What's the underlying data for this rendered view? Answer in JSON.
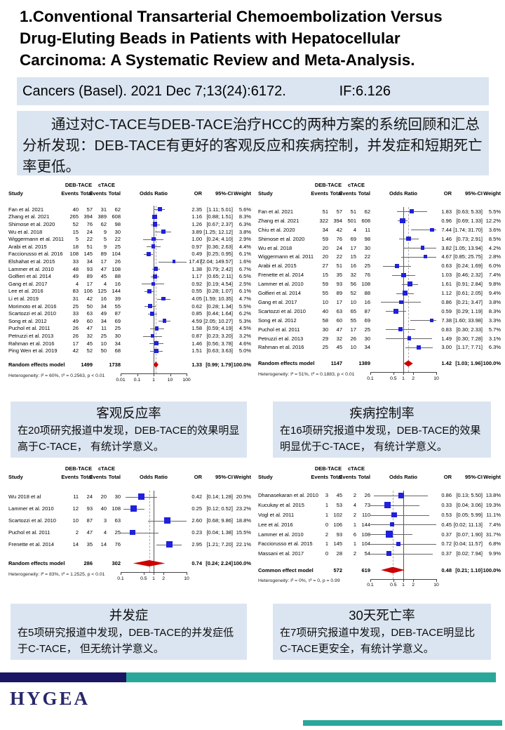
{
  "title": "1.Conventional Transarterial Chemoembolization Versus Drug-Eluting Beads in Patients with Hepatocellular Carcinoma: A Systematic Review and Meta-Analysis.",
  "citation": {
    "text": "Cancers (Basel). 2021 Dec 7;13(24):6172.",
    "impact_factor": "IF:6.126"
  },
  "summary": "通过对C-TACE与DEB-TACE治疗HCC的两种方案的系统回顾和汇总分析发现：DEB-TACE有更好的客观反应和疾病控制，并发症和短期死亡率更低。",
  "colors": {
    "panel_blue": "#dbe5f1",
    "square_blue": "#2020dd",
    "diamond_red": "#cc0000",
    "footer_navy": "#1b1663",
    "footer_teal": "#2aa79b",
    "logo_navy": "#29276b"
  },
  "captions": [
    {
      "title": "客观反应率",
      "body": "在20项研究报道中发现，DEB-TACE的效果明显高于C-TACE， 有统计学意义。"
    },
    {
      "title": "疾病控制率",
      "body": "在16项研究报道中发现，DEB-TACE的效果明显优于C-TACE， 有统计学意义。"
    },
    {
      "title": "并发症",
      "body": "在5项研究报道中发现，DEB-TACE的并发症低于C-TACE， 但无统计学意义。"
    },
    {
      "title": "30天死亡率",
      "body": "在7项研究报道中发现，DEB-TACE明显比C-TACE更安全，有统计学意义。"
    }
  ],
  "footer": {
    "logo": "HYGEA"
  },
  "chart_data": [
    {
      "type": "forest",
      "outcome": "objective-response-rate",
      "group1": "DEB-TACE",
      "group2": "cTACE",
      "headers": {
        "study": "Study",
        "events": "Events",
        "total": "Total",
        "odds_ratio": "Odds Ratio",
        "or": "OR",
        "ci": "95%-CI",
        "weight": "Weight"
      },
      "studies": [
        [
          "Fan et al. 2021",
          40,
          57,
          31,
          62,
          2.35,
          1.11,
          5.01,
          "5.6%"
        ],
        [
          "Zhang et al. 2021",
          265,
          394,
          389,
          608,
          1.16,
          0.88,
          1.51,
          "8.3%"
        ],
        [
          "Shimose et al. 2020",
          52,
          76,
          62,
          98,
          1.26,
          0.67,
          2.37,
          "6.3%"
        ],
        [
          "Wu et al. 2018",
          15,
          24,
          9,
          30,
          3.89,
          1.25,
          12.12,
          "3.8%"
        ],
        [
          "Wiggermann et al. 2011",
          5,
          22,
          5,
          22,
          1.0,
          0.24,
          4.1,
          "2.9%"
        ],
        [
          "Arabi et al. 2015",
          18,
          51,
          9,
          25,
          0.97,
          0.36,
          2.63,
          "4.4%"
        ],
        [
          "Facciorusso et al. 2016",
          108,
          145,
          89,
          104,
          0.49,
          0.25,
          0.95,
          "6.1%"
        ],
        [
          "Elshahat et al. 2015",
          33,
          34,
          17,
          26,
          17.47,
          2.04,
          149.57,
          "1.6%"
        ],
        [
          "Lammer et al. 2010",
          48,
          93,
          47,
          108,
          1.38,
          0.79,
          2.42,
          "6.7%"
        ],
        [
          "Golfieri et al. 2014",
          49,
          89,
          45,
          88,
          1.17,
          0.65,
          2.11,
          "6.5%"
        ],
        [
          "Gang et al. 2017",
          4,
          17,
          4,
          16,
          0.92,
          0.19,
          4.54,
          "2.5%"
        ],
        [
          "Lee et al. 2016",
          83,
          106,
          125,
          144,
          0.55,
          0.28,
          1.07,
          "6.1%"
        ],
        [
          "Li et al. 2019",
          31,
          42,
          16,
          39,
          4.05,
          1.59,
          10.35,
          "4.7%"
        ],
        [
          "Morimoto et al. 2016",
          25,
          50,
          34,
          55,
          0.62,
          0.28,
          1.34,
          "5.5%"
        ],
        [
          "Scartozzi et al. 2010",
          33,
          63,
          49,
          87,
          0.85,
          0.44,
          1.64,
          "6.2%"
        ],
        [
          "Song et al. 2012",
          49,
          60,
          34,
          69,
          4.59,
          2.05,
          10.27,
          "5.3%"
        ],
        [
          "Puchol et al. 2011",
          26,
          47,
          11,
          25,
          1.58,
          0.59,
          4.19,
          "4.5%"
        ],
        [
          "Petruzzi et al. 2013",
          26,
          32,
          25,
          30,
          0.87,
          0.23,
          3.2,
          "3.2%"
        ],
        [
          "Rahman et al. 2016",
          17,
          45,
          10,
          34,
          1.46,
          0.56,
          3.78,
          "4.6%"
        ],
        [
          "Ping Wen et al. 2019",
          42,
          52,
          50,
          68,
          1.51,
          0.63,
          3.63,
          "5.0%"
        ]
      ],
      "pooled": {
        "label": "Random effects model",
        "total1": 1499,
        "total2": 1738,
        "or": 1.33,
        "lo": 0.99,
        "hi": 1.79,
        "weight": "100.0%"
      },
      "heterogeneity": "Heterogeneity: I² = 60%, τ² = 0.2563, p < 0.01",
      "axis": {
        "min": 0.01,
        "max": 100,
        "ticks": [
          "0.01",
          "0.1",
          "1",
          "10",
          "100"
        ]
      }
    },
    {
      "type": "forest",
      "outcome": "disease-control-rate",
      "group1": "DEB-TACE",
      "group2": "cTACE",
      "headers": {
        "study": "Study",
        "events": "Events",
        "total": "Total",
        "odds_ratio": "Odds Ratio",
        "or": "OR",
        "ci": "95%-CI",
        "weight": "Weight"
      },
      "studies": [
        [
          "Fan et al. 2021",
          51,
          57,
          51,
          62,
          1.83,
          0.63,
          5.33,
          "5.5%"
        ],
        [
          "Zhang et al. 2021",
          322,
          394,
          501,
          608,
          0.96,
          0.69,
          1.33,
          "12.2%"
        ],
        [
          "Chiu et al. 2020",
          34,
          42,
          4,
          11,
          7.44,
          1.74,
          31.7,
          "3.6%"
        ],
        [
          "Shimose et al. 2020",
          59,
          76,
          69,
          98,
          1.46,
          0.73,
          2.91,
          "8.5%"
        ],
        [
          "Wu et al. 2018",
          20,
          24,
          17,
          30,
          3.82,
          1.05,
          13.94,
          "4.2%"
        ],
        [
          "Wiggermann et al. 2011",
          20,
          22,
          15,
          22,
          4.67,
          0.85,
          25.75,
          "2.8%"
        ],
        [
          "Arabi et al. 2015",
          27,
          51,
          16,
          25,
          0.63,
          0.24,
          1.69,
          "6.0%"
        ],
        [
          "Frenette et al. 2014",
          15,
          35,
          32,
          76,
          1.03,
          0.46,
          2.32,
          "7.4%"
        ],
        [
          "Lammer et al. 2010",
          59,
          93,
          56,
          108,
          1.61,
          0.91,
          2.84,
          "9.8%"
        ],
        [
          "Golfieri et al. 2014",
          55,
          89,
          52,
          88,
          1.12,
          0.61,
          2.05,
          "9.4%"
        ],
        [
          "Gang et al. 2017",
          10,
          17,
          10,
          16,
          0.86,
          0.21,
          3.47,
          "3.8%"
        ],
        [
          "Scartozzi et al. 2010",
          40,
          63,
          65,
          87,
          0.59,
          0.29,
          1.19,
          "8.3%"
        ],
        [
          "Song et al. 2012",
          58,
          60,
          55,
          69,
          7.38,
          1.6,
          33.98,
          "3.3%"
        ],
        [
          "Puchol et al. 2011",
          30,
          47,
          17,
          25,
          0.83,
          0.3,
          2.33,
          "5.7%"
        ],
        [
          "Petruzzi et al. 2013",
          29,
          32,
          26,
          30,
          1.49,
          0.3,
          7.28,
          "3.1%"
        ],
        [
          "Rahman et al. 2016",
          25,
          45,
          10,
          34,
          3.0,
          1.17,
          7.71,
          "6.3%"
        ]
      ],
      "pooled": {
        "label": "Random effects model",
        "total1": 1147,
        "total2": 1389,
        "or": 1.42,
        "lo": 1.03,
        "hi": 1.96,
        "weight": "100.0%"
      },
      "heterogeneity": "Heterogeneity: I² = 51%, τ² = 0.1883, p < 0.01",
      "axis": {
        "min": 0.1,
        "max": 10,
        "ticks": [
          "0.1",
          "0.5",
          "1",
          "2",
          "10"
        ]
      }
    },
    {
      "type": "forest",
      "outcome": "complications",
      "group1": "DEB-TACE",
      "group2": "cTACE",
      "headers": {
        "study": "Study",
        "events": "Events",
        "total": "Total",
        "odds_ratio": "Odds Ratio",
        "or": "OR",
        "ci": "95%-CI",
        "weight": "Weight"
      },
      "studies": [
        [
          "Wu 2018 et al",
          11,
          24,
          20,
          30,
          0.42,
          0.14,
          1.28,
          "20.5%"
        ],
        [
          "Lammer et al. 2010",
          12,
          93,
          40,
          108,
          0.25,
          0.12,
          0.52,
          "23.2%"
        ],
        [
          "Scartozzi et al. 2010",
          10,
          87,
          3,
          63,
          2.6,
          0.68,
          9.86,
          "18.8%"
        ],
        [
          "Puchol et al. 2011",
          2,
          47,
          4,
          25,
          0.23,
          0.04,
          1.38,
          "15.5%"
        ],
        [
          "Frenette et al. 2014",
          14,
          35,
          14,
          76,
          2.95,
          1.21,
          7.2,
          "22.1%"
        ]
      ],
      "pooled": {
        "label": "Random effects model",
        "total1": 286,
        "total2": 302,
        "or": 0.74,
        "lo": 0.24,
        "hi": 2.24,
        "weight": "100.0%"
      },
      "heterogeneity": "Heterogeneity: I² = 83%, τ² = 1.2525, p < 0.01",
      "axis": {
        "min": 0.1,
        "max": 10,
        "ticks": [
          "0.1",
          "0.5",
          "1",
          "2",
          "10"
        ]
      }
    },
    {
      "type": "forest",
      "outcome": "30-day-mortality",
      "group1": "DEB-TACE",
      "group2": "cTACE",
      "headers": {
        "study": "Study",
        "events": "Events",
        "total": "Total",
        "odds_ratio": "Odds Ratio",
        "or": "OR",
        "ci": "95%-CI",
        "weight": "Weight"
      },
      "studies": [
        [
          "Dhanasekaran et al. 2010",
          3,
          45,
          2,
          26,
          0.86,
          0.13,
          5.5,
          "13.8%"
        ],
        [
          "Kucukay et al. 2015",
          1,
          53,
          4,
          73,
          0.33,
          0.04,
          3.06,
          "19.3%"
        ],
        [
          "Vogl et al. 2011",
          1,
          102,
          2,
          110,
          0.53,
          0.05,
          5.99,
          "11.1%"
        ],
        [
          "Lee et al. 2016",
          0,
          106,
          1,
          144,
          0.45,
          0.02,
          11.13,
          "7.4%"
        ],
        [
          "Lammer et al. 2010",
          2,
          93,
          6,
          108,
          0.37,
          0.07,
          1.9,
          "31.7%"
        ],
        [
          "Facciorusso et al. 2015",
          1,
          145,
          1,
          104,
          0.72,
          0.04,
          11.57,
          "6.8%"
        ],
        [
          "Massani et al. 2017",
          0,
          28,
          2,
          54,
          0.37,
          0.02,
          7.94,
          "9.9%"
        ]
      ],
      "pooled": {
        "label": "Common effect model",
        "total1": 572,
        "total2": 619,
        "or": 0.48,
        "lo": 0.21,
        "hi": 1.1,
        "weight": "100.0%"
      },
      "heterogeneity": "Heterogeneity: I² = 0%, τ² = 0, p = 0.99",
      "axis": {
        "min": 0.1,
        "max": 10,
        "ticks": [
          "0.1",
          "0.5",
          "1",
          "2",
          "10"
        ]
      }
    }
  ]
}
